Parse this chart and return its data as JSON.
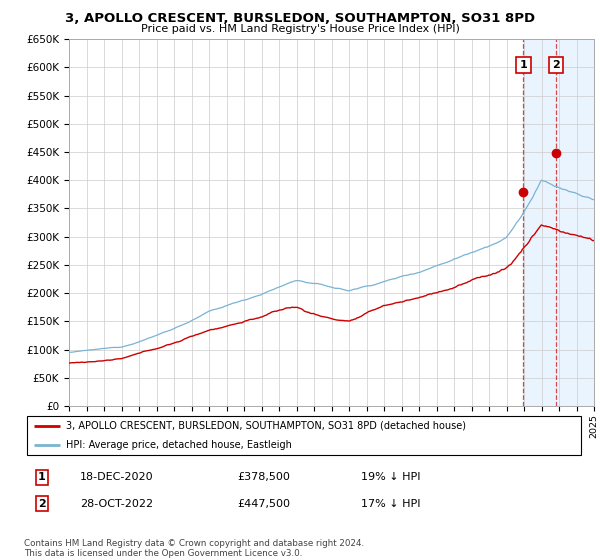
{
  "title": "3, APOLLO CRESCENT, BURSLEDON, SOUTHAMPTON, SO31 8PD",
  "subtitle": "Price paid vs. HM Land Registry's House Price Index (HPI)",
  "x_start_year": 1995,
  "x_end_year": 2025,
  "ylim": [
    0,
    650000
  ],
  "yticks": [
    0,
    50000,
    100000,
    150000,
    200000,
    250000,
    300000,
    350000,
    400000,
    450000,
    500000,
    550000,
    600000,
    650000
  ],
  "hpi_color": "#7ab3d4",
  "price_color": "#cc0000",
  "sale1_year": 2020.96,
  "sale1_price": 378500,
  "sale1_date": "18-DEC-2020",
  "sale1_pct": "19% ↓ HPI",
  "sale2_year": 2022.83,
  "sale2_price": 447500,
  "sale2_date": "28-OCT-2022",
  "sale2_pct": "17% ↓ HPI",
  "legend_line1": "3, APOLLO CRESCENT, BURSLEDON, SOUTHAMPTON, SO31 8PD (detached house)",
  "legend_line2": "HPI: Average price, detached house, Eastleigh",
  "footnote": "Contains HM Land Registry data © Crown copyright and database right 2024.\nThis data is licensed under the Open Government Licence v3.0.",
  "highlight_color": "#ddeeff",
  "vline_color": "#cc0000"
}
